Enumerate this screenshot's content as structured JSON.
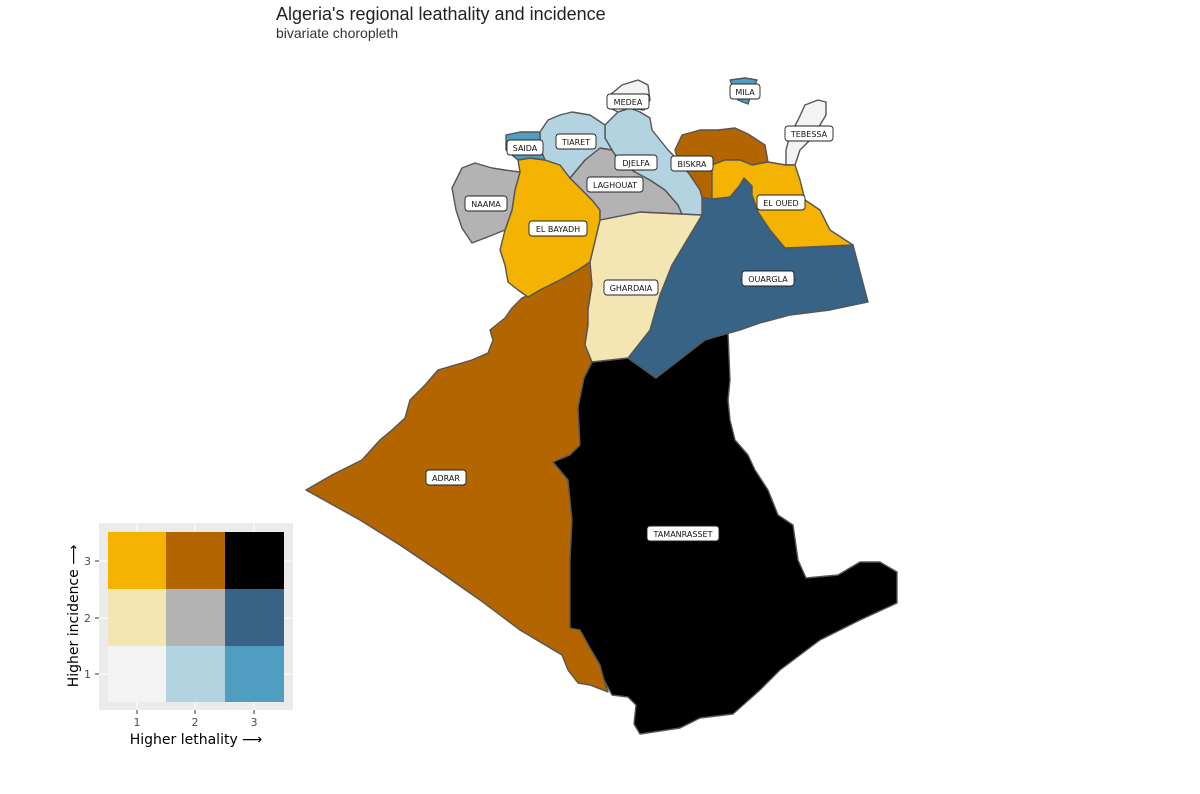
{
  "title": "Algeria's regional leathality and incidence",
  "subtitle": "bivariate choropleth",
  "palette": {
    "1-1": "#f3f3f3",
    "2-1": "#b4d3e1",
    "3-1": "#509dc2",
    "1-2": "#f3e6b3",
    "2-2": "#b3b3b3",
    "3-2": "#376387",
    "1-3": "#f3b300",
    "2-3": "#b36600",
    "3-3": "#000000"
  },
  "chart_data": {
    "type": "bivariate-choropleth",
    "regions": [
      {
        "name": "ADRAR",
        "lethality": 2,
        "incidence": 3
      },
      {
        "name": "TAMANRASSET",
        "lethality": 3,
        "incidence": 3
      },
      {
        "name": "OUARGLA",
        "lethality": 3,
        "incidence": 2
      },
      {
        "name": "GHARDAIA",
        "lethality": 1,
        "incidence": 2
      },
      {
        "name": "EL BAYADH",
        "lethality": 1,
        "incidence": 3
      },
      {
        "name": "NAAMA",
        "lethality": 2,
        "incidence": 2
      },
      {
        "name": "LAGHOUAT",
        "lethality": 2,
        "incidence": 2
      },
      {
        "name": "DJELFA",
        "lethality": 2,
        "incidence": 1
      },
      {
        "name": "TIARET",
        "lethality": 2,
        "incidence": 1
      },
      {
        "name": "SAIDA",
        "lethality": 3,
        "incidence": 1
      },
      {
        "name": "MEDEA",
        "lethality": 1,
        "incidence": 1
      },
      {
        "name": "MILA",
        "lethality": 3,
        "incidence": 1
      },
      {
        "name": "TEBESSA",
        "lethality": 1,
        "incidence": 1
      },
      {
        "name": "BISKRA",
        "lethality": 2,
        "incidence": 3
      },
      {
        "name": "EL OUED",
        "lethality": 1,
        "incidence": 3
      }
    ],
    "legend": {
      "xlabel": "Higher lethality ⟶",
      "ylabel": "Higher incidence ⟶",
      "xticks": [
        "1",
        "2",
        "3"
      ],
      "yticks": [
        "1",
        "2",
        "3"
      ],
      "position": "bottom-left"
    }
  }
}
